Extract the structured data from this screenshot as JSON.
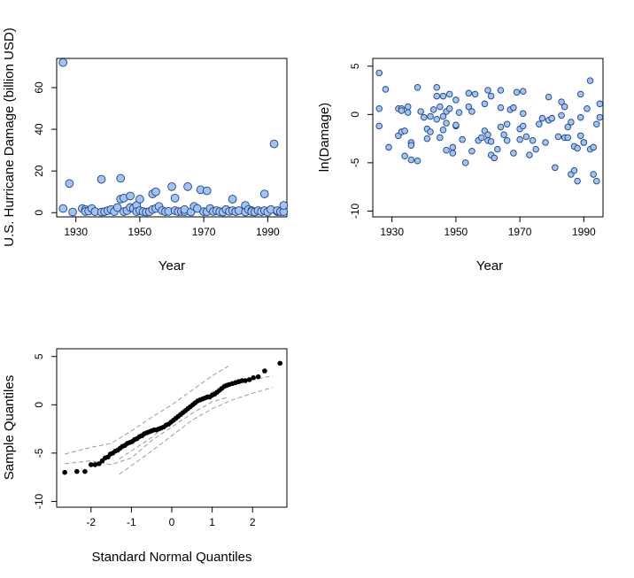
{
  "colors": {
    "point_fill": "#9FC5F8",
    "point_stroke": "#1F3F7F",
    "qq_point": "#000000",
    "envelope": "#9a9a9a"
  },
  "chart_data": [
    {
      "id": "damage",
      "type": "scatter",
      "xlabel": "Year",
      "ylabel": "U.S. Hurricane Damage (billion USD)",
      "xlim": [
        1924,
        1996
      ],
      "ylim": [
        -2,
        74
      ],
      "xticks": [
        1930,
        1950,
        1970,
        1990
      ],
      "yticks": [
        0,
        20,
        40,
        60
      ],
      "x": [
        1926,
        1926,
        1928,
        1929,
        1932,
        1933,
        1933,
        1934,
        1935,
        1936,
        1938,
        1938,
        1939,
        1940,
        1941,
        1942,
        1943,
        1944,
        1944,
        1945,
        1945,
        1946,
        1947,
        1947,
        1948,
        1949,
        1949,
        1950,
        1950,
        1951,
        1952,
        1953,
        1954,
        1954,
        1955,
        1955,
        1956,
        1957,
        1958,
        1959,
        1960,
        1961,
        1961,
        1962,
        1963,
        1964,
        1964,
        1965,
        1966,
        1967,
        1968,
        1969,
        1970,
        1971,
        1971,
        1972,
        1973,
        1974,
        1975,
        1976,
        1977,
        1978,
        1979,
        1979,
        1980,
        1981,
        1983,
        1983,
        1984,
        1985,
        1985,
        1986,
        1987,
        1988,
        1989,
        1989,
        1990,
        1991,
        1992,
        1993,
        1993,
        1994,
        1995,
        1995
      ],
      "y": [
        72,
        2,
        14,
        0.3,
        2,
        1.5,
        0.6,
        0.8,
        2,
        0.5,
        16,
        0.3,
        0.5,
        1,
        1.5,
        0.5,
        2.5,
        6.5,
        16.5,
        7,
        0.5,
        1,
        2.5,
        8,
        2,
        3.5,
        0.5,
        6.5,
        1,
        0.5,
        0.3,
        0.5,
        9,
        1.5,
        10,
        2,
        3,
        1,
        0.5,
        0.6,
        12.5,
        7,
        1,
        0.5,
        0.6,
        0.5,
        1.5,
        12.5,
        0.3,
        3,
        2,
        11,
        0.5,
        0.5,
        10.5,
        2,
        0.6,
        1,
        0.5,
        0.3,
        1.5,
        0.6,
        1,
        6.5,
        0.5,
        1,
        3.5,
        0.3,
        1.5,
        1,
        0.5,
        0.3,
        1,
        0.5,
        1,
        9,
        0.3,
        1.5,
        33,
        0.5,
        1,
        0.5,
        0.5,
        3.5
      ]
    },
    {
      "id": "log-damage",
      "type": "scatter",
      "xlabel": "Year",
      "ylabel": "ln(Damage)",
      "xlim": [
        1924,
        1996
      ],
      "ylim": [
        -10.6,
        5.8
      ],
      "xticks": [
        1930,
        1950,
        1970,
        1990
      ],
      "yticks": [
        -10,
        -5,
        0,
        5
      ],
      "x": [
        1926,
        1926,
        1926,
        1928,
        1929,
        1932,
        1932,
        1933,
        1933,
        1933,
        1934,
        1934,
        1935,
        1935,
        1936,
        1936,
        1936,
        1938,
        1938,
        1939,
        1940,
        1941,
        1941,
        1942,
        1942,
        1943,
        1944,
        1944,
        1944,
        1945,
        1945,
        1946,
        1946,
        1946,
        1947,
        1947,
        1947,
        1948,
        1948,
        1949,
        1949,
        1950,
        1950,
        1950,
        1951,
        1952,
        1953,
        1954,
        1954,
        1955,
        1955,
        1956,
        1957,
        1958,
        1959,
        1959,
        1960,
        1960,
        1960,
        1961,
        1961,
        1961,
        1962,
        1963,
        1964,
        1964,
        1964,
        1965,
        1966,
        1966,
        1967,
        1968,
        1968,
        1969,
        1970,
        1970,
        1971,
        1971,
        1971,
        1972,
        1973,
        1974,
        1975,
        1976,
        1977,
        1978,
        1979,
        1979,
        1980,
        1981,
        1982,
        1983,
        1983,
        1984,
        1984,
        1985,
        1985,
        1986,
        1986,
        1987,
        1987,
        1988,
        1988,
        1989,
        1989,
        1989,
        1990,
        1990,
        1991,
        1992,
        1992,
        1993,
        1993,
        1994,
        1994,
        1995,
        1995
      ],
      "y": [
        4.3,
        0.6,
        -1.2,
        2.6,
        -3.4,
        -2.2,
        0.6,
        0.6,
        -1.8,
        0.4,
        -1.7,
        -4.3,
        0.8,
        0.2,
        -2.9,
        -3.2,
        -4.7,
        2.8,
        -4.8,
        0.3,
        -0.3,
        -1.5,
        -2.5,
        -0.2,
        -1.8,
        0.5,
        2.8,
        1.9,
        -0.5,
        0.8,
        -2.4,
        1.9,
        -0.2,
        -1.6,
        0.3,
        -0.9,
        -3.7,
        2.1,
        0.6,
        -3.4,
        -4.0,
        1.5,
        -1.2,
        -1.1,
        0.2,
        -2.6,
        -5.0,
        0.8,
        2.2,
        0.3,
        -3.8,
        2.1,
        -2.7,
        -2.4,
        1.1,
        -1.7,
        -2.1,
        -2.7,
        2.5,
        1.9,
        -2.8,
        -4.2,
        -4.5,
        -3.6,
        0.7,
        -1.3,
        2.5,
        -2.1,
        -1.0,
        -2.7,
        0.5,
        0.7,
        -4.0,
        2.3,
        -1.5,
        -2.6,
        0.1,
        -1.2,
        2.4,
        -2.3,
        -4.2,
        -2.7,
        -3.6,
        -1.0,
        -0.4,
        -2.9,
        1.8,
        -0.6,
        -0.4,
        -5.5,
        -2.3,
        1.3,
        -0.1,
        -2.4,
        0.8,
        -1.3,
        -2.4,
        -6.2,
        -0.8,
        -5.8,
        -3.3,
        -3.5,
        -6.9,
        -2.2,
        2.1,
        -0.3,
        -2.9,
        -2.9,
        0.6,
        3.5,
        -3.6,
        -3.4,
        -6.2,
        -1.0,
        -6.9,
        -0.3,
        1.1
      ]
    },
    {
      "id": "qq-plot",
      "type": "scatter",
      "xlabel": "Standard Normal Quantiles",
      "ylabel": "Sample Quantiles",
      "xlim": [
        -2.85,
        2.85
      ],
      "ylim": [
        -10.6,
        5.8
      ],
      "xticks": [
        -2,
        -1,
        0,
        1,
        2
      ],
      "yticks": [
        -10,
        -5,
        0,
        5
      ],
      "x": [
        -2.65,
        -2.35,
        -2.15,
        -2.0,
        -1.9,
        -1.8,
        -1.72,
        -1.65,
        -1.58,
        -1.52,
        -1.46,
        -1.4,
        -1.34,
        -1.28,
        -1.22,
        -1.16,
        -1.1,
        -1.04,
        -0.98,
        -0.92,
        -0.86,
        -0.8,
        -0.74,
        -0.68,
        -0.62,
        -0.56,
        -0.5,
        -0.44,
        -0.38,
        -0.32,
        -0.26,
        -0.2,
        -0.14,
        -0.08,
        -0.02,
        0.04,
        0.1,
        0.16,
        0.22,
        0.28,
        0.34,
        0.4,
        0.46,
        0.52,
        0.58,
        0.64,
        0.7,
        0.76,
        0.82,
        0.88,
        0.94,
        1.0,
        1.06,
        1.12,
        1.18,
        1.24,
        1.3,
        1.36,
        1.42,
        1.5,
        1.58,
        1.66,
        1.74,
        1.82,
        1.92,
        2.02,
        2.14,
        2.3,
        2.68
      ],
      "y": [
        -7.0,
        -6.9,
        -6.9,
        -6.2,
        -6.2,
        -6.1,
        -5.8,
        -5.5,
        -5.4,
        -5.1,
        -5.0,
        -4.8,
        -4.7,
        -4.5,
        -4.3,
        -4.2,
        -4.0,
        -3.9,
        -3.8,
        -3.6,
        -3.5,
        -3.3,
        -3.2,
        -3.0,
        -2.9,
        -2.8,
        -2.7,
        -2.6,
        -2.6,
        -2.5,
        -2.4,
        -2.3,
        -2.1,
        -2.0,
        -1.8,
        -1.6,
        -1.4,
        -1.2,
        -1.0,
        -0.8,
        -0.6,
        -0.4,
        -0.2,
        0.0,
        0.2,
        0.4,
        0.5,
        0.6,
        0.7,
        0.8,
        0.8,
        1.0,
        1.1,
        1.3,
        1.5,
        1.7,
        1.9,
        2.0,
        2.1,
        2.2,
        2.3,
        2.4,
        2.5,
        2.5,
        2.6,
        2.8,
        2.9,
        3.5,
        4.3
      ],
      "envelope": {
        "x": [
          -2.65,
          -2.0,
          -1.5,
          -1.0,
          -0.5,
          0.0,
          0.5,
          1.0,
          1.4
        ],
        "lower": [
          -6.1,
          -5.8,
          -6.2,
          -5.5,
          -3.7,
          -2.3,
          -0.9,
          0.3,
          0.8
        ],
        "upper": [
          -5.1,
          -4.4,
          -4.0,
          -2.7,
          -1.3,
          0.0,
          1.5,
          3.0,
          4.0
        ]
      },
      "envelope2": {
        "x": [
          -1.3,
          -0.5,
          0.0,
          0.5,
          1.0,
          1.5,
          2.0,
          2.5
        ],
        "lower": [
          -7.2,
          -4.8,
          -3.2,
          -1.6,
          -0.4,
          0.5,
          1.2,
          1.8
        ],
        "upper": [
          -5.6,
          -3.4,
          -1.6,
          0.2,
          1.3,
          2.0,
          2.6,
          3.0
        ]
      }
    }
  ]
}
